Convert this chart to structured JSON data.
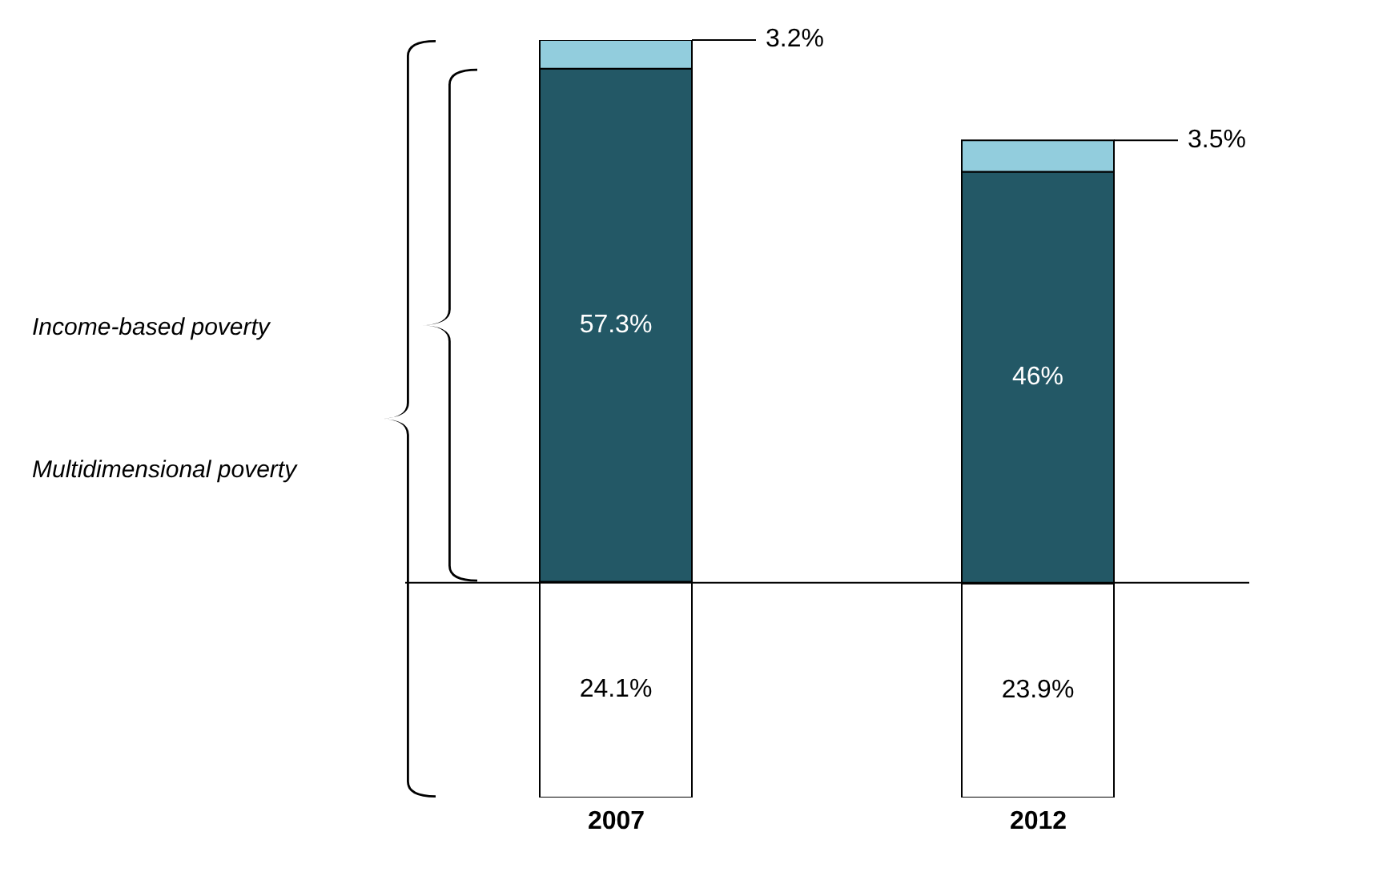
{
  "chart_data": {
    "type": "bar",
    "stacked": true,
    "categories": [
      "2007",
      "2012"
    ],
    "series": [
      {
        "color": "#ffffff",
        "values": [
          24.1,
          23.9
        ],
        "value_labels": [
          "24.1%",
          "23.9%"
        ]
      },
      {
        "color": "#235866",
        "values": [
          57.3,
          46
        ],
        "value_labels": [
          "57.3%",
          "46%"
        ]
      },
      {
        "color": "#92cddd",
        "values": [
          3.2,
          3.5
        ],
        "value_labels": [
          "3.2%",
          "3.5%"
        ]
      }
    ],
    "ref_lines": [
      {
        "axis": "y",
        "value": 24,
        "color": "#000000"
      }
    ],
    "annotations": [
      "Income-based poverty",
      "Multidimensional poverty"
    ]
  }
}
